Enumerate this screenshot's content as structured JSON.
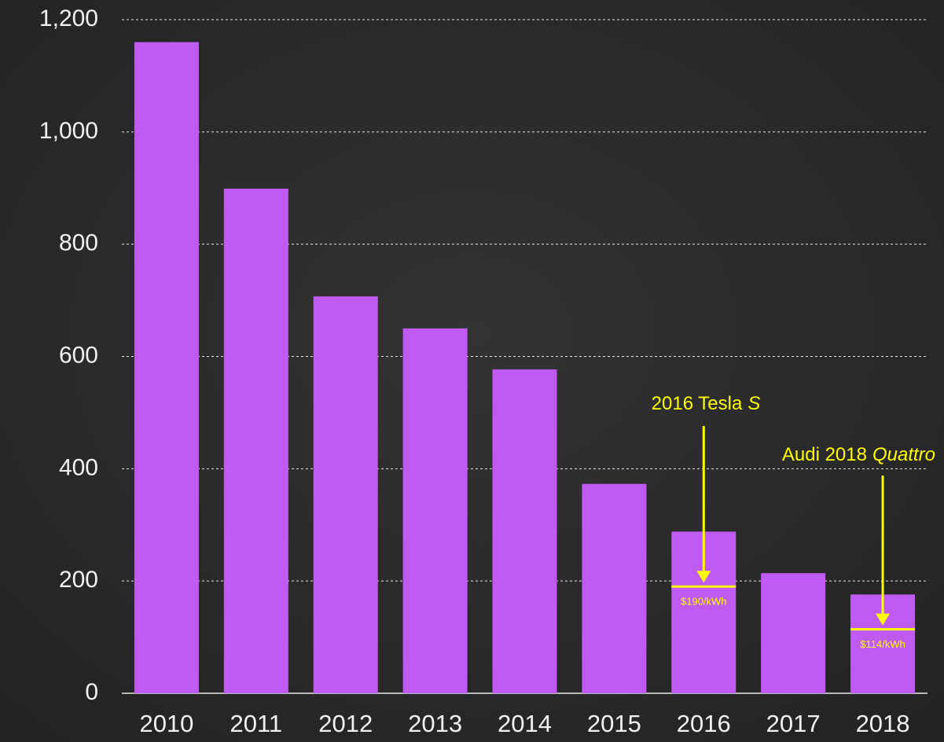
{
  "chart_data": {
    "type": "bar",
    "categories": [
      "2010",
      "2011",
      "2012",
      "2013",
      "2014",
      "2015",
      "2016",
      "2017",
      "2018"
    ],
    "values": [
      1160,
      899,
      707,
      650,
      577,
      373,
      288,
      214,
      176
    ],
    "color": "#bf5af2",
    "ylim": [
      0,
      1200
    ],
    "yticks": [
      0,
      200,
      400,
      600,
      800,
      {
        "value": 1000,
        "label": "1,000"
      },
      {
        "value": 1200,
        "label": "1,200"
      }
    ],
    "grid": true,
    "annotations": [
      {
        "text": "2016 Tesla",
        "italic": "S",
        "value": 190,
        "label": "$190/kWh",
        "color": "#ffff00"
      },
      {
        "text": "Audi 2018",
        "italic": "Quattro",
        "value": 114,
        "label": "$114/kWh",
        "color": "#ffff00"
      }
    ]
  }
}
